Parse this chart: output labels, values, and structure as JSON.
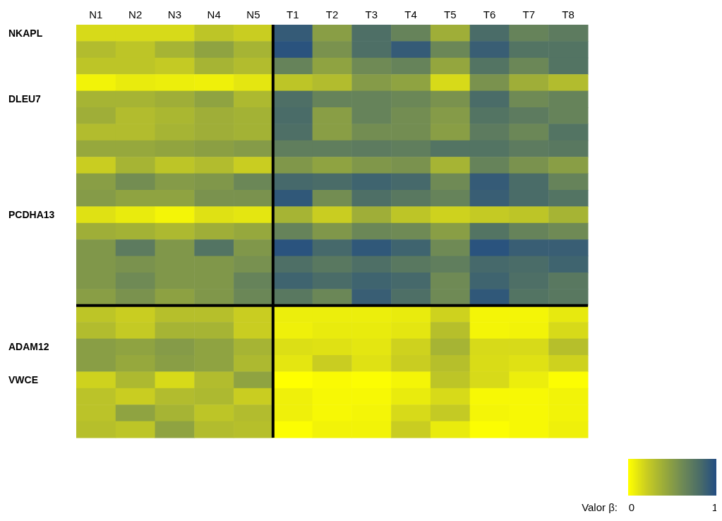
{
  "chart_data": {
    "type": "heatmap",
    "categories": [
      "N1",
      "N2",
      "N3",
      "N4",
      "N5",
      "T1",
      "T2",
      "T3",
      "T4",
      "T5",
      "T6",
      "T7",
      "T8"
    ],
    "y_categories": [
      "NKAPL",
      null,
      null,
      null,
      "DLEU7",
      null,
      null,
      null,
      null,
      null,
      null,
      "PCDHA13",
      null,
      null,
      null,
      null,
      null,
      null,
      null,
      "ADAM12",
      null,
      "VWCE",
      null,
      null,
      null
    ],
    "cells": [
      [
        0.15,
        0.15,
        0.15,
        0.25,
        0.2,
        0.9,
        0.48,
        0.78,
        0.65,
        0.38,
        0.8,
        0.65,
        0.7
      ],
      [
        0.3,
        0.25,
        0.35,
        0.45,
        0.35,
        0.95,
        0.55,
        0.78,
        0.9,
        0.62,
        0.88,
        0.75,
        0.75
      ],
      [
        0.25,
        0.25,
        0.22,
        0.35,
        0.3,
        0.65,
        0.45,
        0.6,
        0.65,
        0.43,
        0.75,
        0.62,
        0.75
      ],
      [
        0.05,
        0.08,
        0.07,
        0.06,
        0.1,
        0.25,
        0.3,
        0.5,
        0.45,
        0.15,
        0.55,
        0.38,
        0.3
      ],
      [
        0.35,
        0.35,
        0.38,
        0.45,
        0.32,
        0.78,
        0.65,
        0.65,
        0.62,
        0.55,
        0.8,
        0.6,
        0.65
      ],
      [
        0.38,
        0.3,
        0.33,
        0.38,
        0.36,
        0.8,
        0.48,
        0.65,
        0.58,
        0.5,
        0.75,
        0.7,
        0.65
      ],
      [
        0.3,
        0.3,
        0.35,
        0.38,
        0.36,
        0.78,
        0.48,
        0.58,
        0.58,
        0.48,
        0.7,
        0.62,
        0.75
      ],
      [
        0.42,
        0.42,
        0.44,
        0.47,
        0.5,
        0.68,
        0.68,
        0.7,
        0.68,
        0.75,
        0.75,
        0.7,
        0.72
      ],
      [
        0.2,
        0.35,
        0.25,
        0.3,
        0.2,
        0.52,
        0.45,
        0.52,
        0.55,
        0.35,
        0.65,
        0.55,
        0.48
      ],
      [
        0.48,
        0.58,
        0.5,
        0.52,
        0.62,
        0.82,
        0.8,
        0.85,
        0.82,
        0.6,
        0.9,
        0.8,
        0.65
      ],
      [
        0.5,
        0.45,
        0.45,
        0.55,
        0.55,
        0.92,
        0.58,
        0.78,
        0.72,
        0.65,
        0.88,
        0.8,
        0.75
      ],
      [
        0.12,
        0.08,
        0.04,
        0.12,
        0.1,
        0.35,
        0.2,
        0.38,
        0.25,
        0.18,
        0.22,
        0.25,
        0.35
      ],
      [
        0.38,
        0.36,
        0.32,
        0.38,
        0.42,
        0.65,
        0.52,
        0.62,
        0.6,
        0.48,
        0.75,
        0.65,
        0.6
      ],
      [
        0.52,
        0.7,
        0.52,
        0.75,
        0.52,
        0.95,
        0.82,
        0.92,
        0.85,
        0.6,
        0.95,
        0.88,
        0.88
      ],
      [
        0.52,
        0.55,
        0.52,
        0.52,
        0.56,
        0.78,
        0.72,
        0.78,
        0.72,
        0.68,
        0.82,
        0.8,
        0.85
      ],
      [
        0.52,
        0.6,
        0.52,
        0.52,
        0.65,
        0.85,
        0.8,
        0.85,
        0.82,
        0.6,
        0.85,
        0.78,
        0.72
      ],
      [
        0.48,
        0.55,
        0.46,
        0.52,
        0.62,
        0.72,
        0.62,
        0.88,
        0.78,
        0.6,
        0.92,
        0.75,
        0.72
      ],
      [
        0.25,
        0.2,
        0.28,
        0.28,
        0.2,
        0.07,
        0.07,
        0.07,
        0.08,
        0.18,
        0.04,
        0.04,
        0.09
      ],
      [
        0.3,
        0.22,
        0.35,
        0.35,
        0.2,
        0.06,
        0.08,
        0.08,
        0.1,
        0.28,
        0.04,
        0.05,
        0.15
      ],
      [
        0.48,
        0.45,
        0.5,
        0.45,
        0.35,
        0.13,
        0.12,
        0.1,
        0.18,
        0.35,
        0.15,
        0.15,
        0.28
      ],
      [
        0.48,
        0.42,
        0.48,
        0.45,
        0.32,
        0.1,
        0.2,
        0.12,
        0.2,
        0.28,
        0.14,
        0.12,
        0.18
      ],
      [
        0.18,
        0.32,
        0.15,
        0.3,
        0.45,
        0,
        0.02,
        0.01,
        0.04,
        0.25,
        0.15,
        0.07,
        0.01
      ],
      [
        0.26,
        0.2,
        0.3,
        0.32,
        0.2,
        0.06,
        0.03,
        0.03,
        0.08,
        0.15,
        0.03,
        0.03,
        0.05
      ],
      [
        0.26,
        0.45,
        0.35,
        0.25,
        0.3,
        0.06,
        0.03,
        0.04,
        0.15,
        0.22,
        0.04,
        0.03,
        0.05
      ],
      [
        0.28,
        0.25,
        0.45,
        0.3,
        0.28,
        0.01,
        0.05,
        0.05,
        0.2,
        0.08,
        0.01,
        0.03,
        0.06
      ]
    ],
    "clim": [
      0,
      1
    ],
    "cticks": [
      0,
      1
    ],
    "clabel": "Valor β:"
  }
}
